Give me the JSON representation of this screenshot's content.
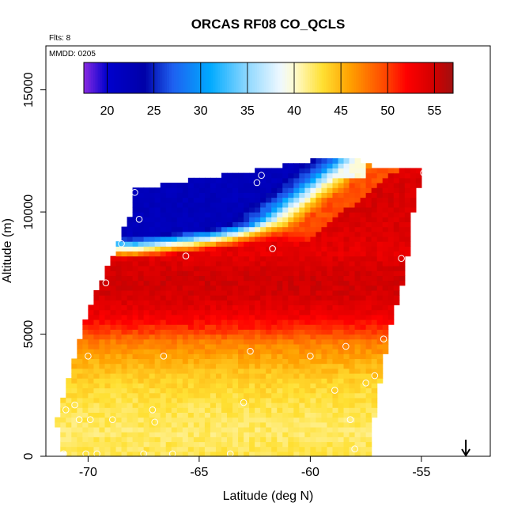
{
  "chart_data": {
    "type": "heatmap",
    "title": "ORCAS RF08 CO_QCLS",
    "notes": {
      "flights": "Flts: 8",
      "date": "MMDD: 0205"
    },
    "xlabel": "Latitude (deg N)",
    "ylabel": "Altitude (m)",
    "xlim": [
      -71.9,
      -51.9
    ],
    "ylim": [
      0,
      16800
    ],
    "x_ticks": [
      -70,
      -65,
      -60,
      -55
    ],
    "x_tick_labels": [
      "-70",
      "-65",
      "-60",
      "-55"
    ],
    "y_ticks": [
      0,
      5000,
      10000,
      15000
    ],
    "y_tick_labels": [
      "0",
      "5000",
      "10000",
      "15000"
    ],
    "colorbar": {
      "range": [
        17.5,
        57
      ],
      "ticks": [
        20,
        25,
        30,
        35,
        40,
        45,
        50,
        55
      ],
      "tick_labels": [
        "20",
        "25",
        "30",
        "35",
        "40",
        "45",
        "50",
        "55"
      ],
      "stops": [
        [
          17.5,
          "#8a2be2"
        ],
        [
          20,
          "#0000cd"
        ],
        [
          24,
          "#0000a8"
        ],
        [
          27,
          "#1e60f0"
        ],
        [
          31,
          "#00aaff"
        ],
        [
          35,
          "#8fd8ff"
        ],
        [
          38.5,
          "#eef8ff"
        ],
        [
          40,
          "#fffbd0"
        ],
        [
          43,
          "#ffe033"
        ],
        [
          46,
          "#ffa000"
        ],
        [
          50,
          "#ff4000"
        ],
        [
          52,
          "#ff0000"
        ],
        [
          55,
          "#d00000"
        ],
        [
          57,
          "#a01010"
        ]
      ]
    },
    "field": {
      "x_start": -71.5,
      "x_end": -55.0,
      "x_step": 0.25,
      "z_step": 200,
      "region_bottom": [
        [
          -71.5,
          1300
        ],
        [
          -71.2,
          0
        ],
        [
          -57.5,
          0
        ]
      ],
      "region_top": [
        [
          -71.5,
          1500
        ],
        [
          -70.2,
          5800
        ],
        [
          -69.4,
          7400
        ],
        [
          -68.2,
          10000
        ],
        [
          -68.0,
          10900
        ],
        [
          -65.5,
          11300
        ],
        [
          -62.5,
          11700
        ],
        [
          -60.2,
          12100
        ],
        [
          -58.0,
          12100
        ],
        [
          -57.2,
          11800
        ],
        [
          -55.0,
          11800
        ]
      ],
      "region_right": [
        [
          0,
          -57.5
        ],
        [
          2000,
          -57.2
        ],
        [
          4000,
          -56.8
        ],
        [
          5500,
          -56.5
        ],
        [
          7000,
          -56.0
        ],
        [
          8500,
          -55.7
        ],
        [
          10000,
          -55.5
        ],
        [
          12000,
          -55.0
        ]
      ],
      "profile": [
        [
          0,
          42.5
        ],
        [
          1000,
          42
        ],
        [
          2000,
          42.5
        ],
        [
          3000,
          43.5
        ],
        [
          4000,
          45.5
        ],
        [
          4700,
          47.5
        ],
        [
          5200,
          50.5
        ],
        [
          5800,
          53
        ],
        [
          6500,
          54.5
        ],
        [
          7200,
          55
        ],
        [
          7800,
          54.5
        ],
        [
          8300,
          53.5
        ],
        [
          9000,
          54
        ],
        [
          10000,
          54.5
        ],
        [
          11000,
          54.5
        ],
        [
          12000,
          54
        ]
      ],
      "clean_layer": {
        "z_upper_lat_-68": 10700,
        "z_lower_lat_-68": 8100,
        "z_upper_lat_-62": 11900,
        "z_lower_lat_-62": 8700,
        "lat_end_lower": -56.5,
        "z_lower_end": 7900,
        "min_value": 22
      }
    },
    "points": [
      [
        -71.1,
        100
      ],
      [
        -70.1,
        100
      ],
      [
        -69.6,
        100
      ],
      [
        -67.5,
        100
      ],
      [
        -66.2,
        100
      ],
      [
        -63.6,
        100
      ],
      [
        -58.0,
        300
      ],
      [
        -71.0,
        1900
      ],
      [
        -70.4,
        1500
      ],
      [
        -69.9,
        1500
      ],
      [
        -68.9,
        1500
      ],
      [
        -67.0,
        1400
      ],
      [
        -70.6,
        2100
      ],
      [
        -67.1,
        1900
      ],
      [
        -63.0,
        2200
      ],
      [
        -58.2,
        1500
      ],
      [
        -58.9,
        2700
      ],
      [
        -57.5,
        3000
      ],
      [
        -57.1,
        3300
      ],
      [
        -70.0,
        4100
      ],
      [
        -66.6,
        4100
      ],
      [
        -62.7,
        4300
      ],
      [
        -60.0,
        4100
      ],
      [
        -58.4,
        4500
      ],
      [
        -56.7,
        4800
      ],
      [
        -69.2,
        7100
      ],
      [
        -68.5,
        8700
      ],
      [
        -65.6,
        8200
      ],
      [
        -61.7,
        8500
      ],
      [
        -55.9,
        8100
      ],
      [
        -67.7,
        9700
      ],
      [
        -67.9,
        10800
      ],
      [
        -62.4,
        11200
      ],
      [
        -54.9,
        11600
      ],
      [
        -62.2,
        11500
      ]
    ],
    "arrow": {
      "x": -53.0,
      "direction": "down"
    }
  }
}
